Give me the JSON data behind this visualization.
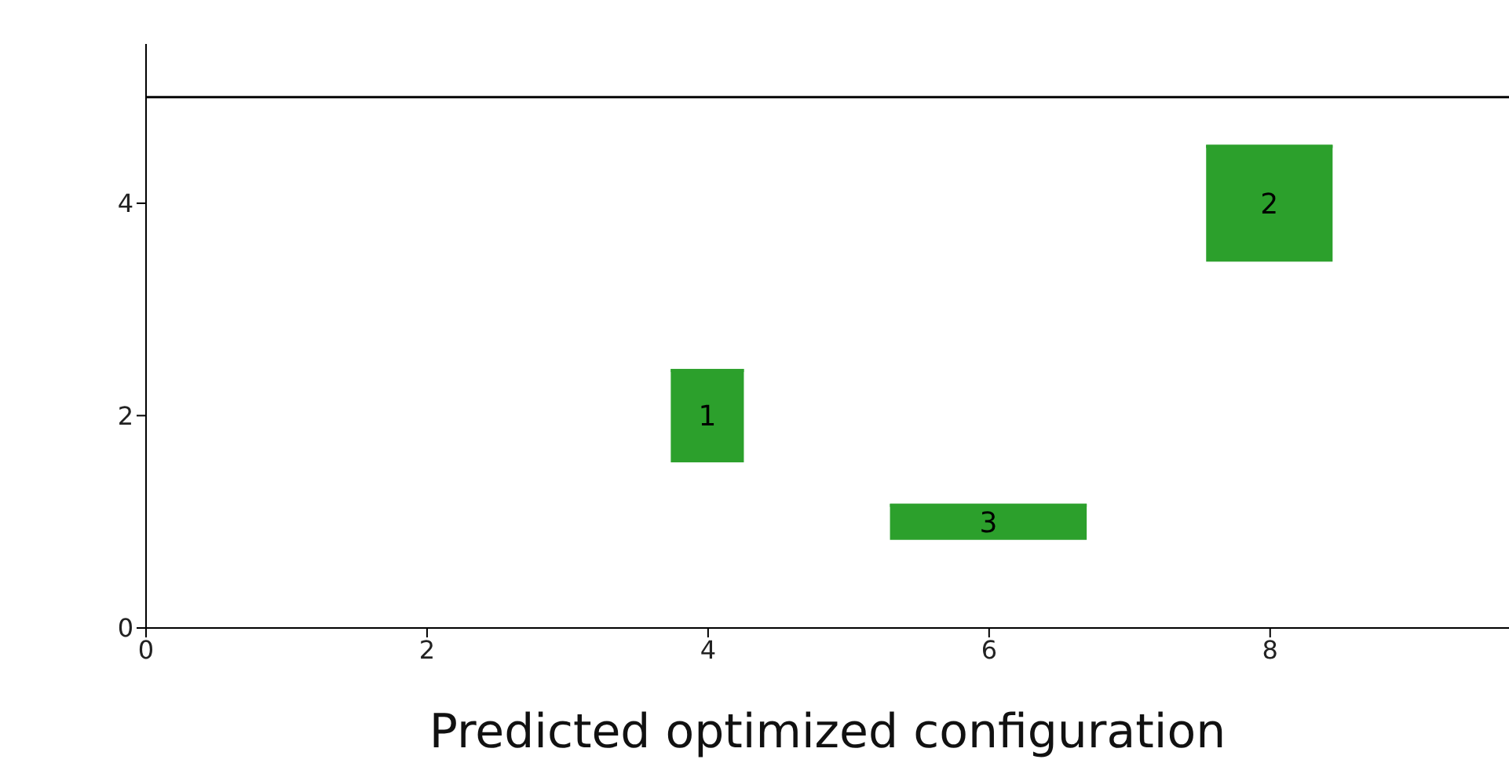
{
  "chart_data": {
    "type": "bar",
    "xlabel": "Predicted optimized configuration",
    "x": [
      4,
      6,
      8
    ],
    "series": [
      {
        "color": "#2ca02c",
        "values": [
          0.88,
          0.34,
          1.1
        ],
        "base": [
          1.56,
          0.83,
          3.45
        ],
        "xerrors": [
          0.26,
          0.7,
          0.45
        ]
      }
    ],
    "xlim": [
      0,
      9.7
    ],
    "ylim": [
      0,
      5.5
    ],
    "xticks": [
      0,
      2,
      4,
      6,
      8
    ],
    "yticks": [
      0,
      2,
      4
    ],
    "ref_lines": [
      {
        "axis": "y",
        "value": 5,
        "color": "#000000"
      }
    ],
    "annotations": [
      "1",
      "3",
      "2"
    ],
    "grid": false,
    "legend": false
  }
}
